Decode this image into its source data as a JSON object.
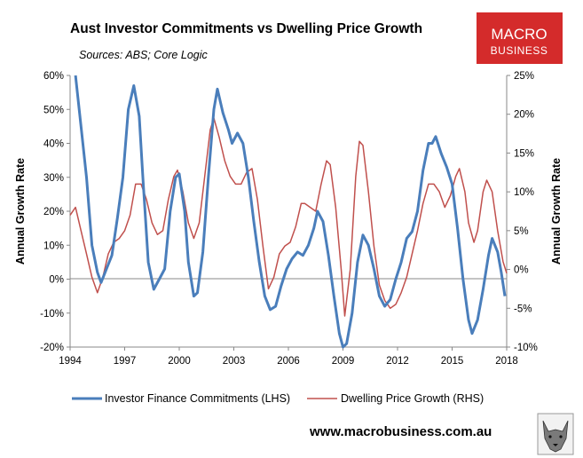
{
  "chart_data": {
    "type": "line",
    "title": "Aust Investor Commitments vs Dwelling Price Growth",
    "subtitle": "Sources: ABS; Core Logic",
    "ylabel_left": "Annual Growth Rate",
    "ylabel_right": "Annual Growth Rate",
    "xlim": [
      1994,
      2018
    ],
    "xticks": [
      "1994",
      "1997",
      "2000",
      "2003",
      "2006",
      "2009",
      "2012",
      "2015",
      "2018"
    ],
    "ylim_left": [
      -20,
      60
    ],
    "yticks_left": [
      "-20%",
      "-10%",
      "0%",
      "10%",
      "20%",
      "30%",
      "40%",
      "50%",
      "60%"
    ],
    "ylim_right": [
      -10,
      25
    ],
    "yticks_right": [
      "-10%",
      "-5%",
      "0%",
      "5%",
      "10%",
      "15%",
      "20%",
      "25%"
    ],
    "grid": false,
    "legend_position": "bottom",
    "series": [
      {
        "name": "Investor Finance Commitments (LHS)",
        "axis": "left",
        "color": "#4a7ebb",
        "points": [
          [
            1994.3,
            60
          ],
          [
            1994.6,
            45
          ],
          [
            1994.9,
            30
          ],
          [
            1995.2,
            10
          ],
          [
            1995.5,
            2
          ],
          [
            1995.7,
            -1
          ],
          [
            1996.0,
            3
          ],
          [
            1996.3,
            7
          ],
          [
            1996.6,
            18
          ],
          [
            1996.9,
            30
          ],
          [
            1997.2,
            50
          ],
          [
            1997.5,
            57
          ],
          [
            1997.8,
            48
          ],
          [
            1998.0,
            30
          ],
          [
            1998.3,
            5
          ],
          [
            1998.6,
            -3
          ],
          [
            1998.9,
            0
          ],
          [
            1999.2,
            3
          ],
          [
            1999.5,
            20
          ],
          [
            1999.8,
            30
          ],
          [
            2000.0,
            31
          ],
          [
            2000.3,
            20
          ],
          [
            2000.5,
            5
          ],
          [
            2000.8,
            -5
          ],
          [
            2001.0,
            -4
          ],
          [
            2001.3,
            8
          ],
          [
            2001.6,
            30
          ],
          [
            2001.9,
            50
          ],
          [
            2002.1,
            56
          ],
          [
            2002.4,
            49
          ],
          [
            2002.7,
            44
          ],
          [
            2002.9,
            40
          ],
          [
            2003.2,
            43
          ],
          [
            2003.5,
            40
          ],
          [
            2003.8,
            30
          ],
          [
            2004.1,
            17
          ],
          [
            2004.4,
            5
          ],
          [
            2004.7,
            -5
          ],
          [
            2005.0,
            -9
          ],
          [
            2005.3,
            -8
          ],
          [
            2005.6,
            -2
          ],
          [
            2005.9,
            3
          ],
          [
            2006.2,
            6
          ],
          [
            2006.5,
            8
          ],
          [
            2006.8,
            7
          ],
          [
            2007.1,
            10
          ],
          [
            2007.4,
            15
          ],
          [
            2007.6,
            20
          ],
          [
            2007.9,
            17
          ],
          [
            2008.2,
            7
          ],
          [
            2008.5,
            -5
          ],
          [
            2008.8,
            -16
          ],
          [
            2009.0,
            -20
          ],
          [
            2009.2,
            -19
          ],
          [
            2009.5,
            -10
          ],
          [
            2009.8,
            5
          ],
          [
            2010.1,
            13
          ],
          [
            2010.4,
            10
          ],
          [
            2010.7,
            3
          ],
          [
            2011.0,
            -5
          ],
          [
            2011.3,
            -8
          ],
          [
            2011.6,
            -6
          ],
          [
            2011.9,
            0
          ],
          [
            2012.2,
            5
          ],
          [
            2012.5,
            12
          ],
          [
            2012.8,
            14
          ],
          [
            2013.1,
            20
          ],
          [
            2013.4,
            32
          ],
          [
            2013.7,
            40
          ],
          [
            2013.9,
            40
          ],
          [
            2014.1,
            42
          ],
          [
            2014.4,
            37
          ],
          [
            2014.7,
            33
          ],
          [
            2015.0,
            28
          ],
          [
            2015.3,
            15
          ],
          [
            2015.6,
            0
          ],
          [
            2015.9,
            -12
          ],
          [
            2016.1,
            -16
          ],
          [
            2016.4,
            -12
          ],
          [
            2016.7,
            -3
          ],
          [
            2017.0,
            7
          ],
          [
            2017.2,
            12
          ],
          [
            2017.5,
            8
          ],
          [
            2017.7,
            2
          ],
          [
            2017.9,
            -5
          ]
        ]
      },
      {
        "name": "Dwelling Price Growth (RHS)",
        "axis": "right",
        "color": "#c0504d",
        "points": [
          [
            1994.0,
            7
          ],
          [
            1994.3,
            8
          ],
          [
            1994.6,
            5
          ],
          [
            1994.9,
            2
          ],
          [
            1995.2,
            -1
          ],
          [
            1995.5,
            -3
          ],
          [
            1995.8,
            -1
          ],
          [
            1996.1,
            2
          ],
          [
            1996.4,
            3.5
          ],
          [
            1996.7,
            4
          ],
          [
            1997.0,
            5
          ],
          [
            1997.3,
            7
          ],
          [
            1997.6,
            11
          ],
          [
            1997.9,
            11
          ],
          [
            1998.2,
            9
          ],
          [
            1998.5,
            6
          ],
          [
            1998.8,
            4.5
          ],
          [
            1999.1,
            5
          ],
          [
            1999.4,
            9
          ],
          [
            1999.7,
            12
          ],
          [
            1999.9,
            12.8
          ],
          [
            2000.2,
            10
          ],
          [
            2000.5,
            6
          ],
          [
            2000.8,
            4
          ],
          [
            2001.1,
            6
          ],
          [
            2001.4,
            12
          ],
          [
            2001.7,
            18
          ],
          [
            2001.9,
            19.5
          ],
          [
            2002.2,
            17
          ],
          [
            2002.5,
            14
          ],
          [
            2002.8,
            12
          ],
          [
            2003.1,
            11
          ],
          [
            2003.4,
            11
          ],
          [
            2003.7,
            12.5
          ],
          [
            2004.0,
            13
          ],
          [
            2004.3,
            9
          ],
          [
            2004.6,
            3
          ],
          [
            2004.9,
            -2.5
          ],
          [
            2005.2,
            -1
          ],
          [
            2005.5,
            2
          ],
          [
            2005.8,
            3
          ],
          [
            2006.1,
            3.5
          ],
          [
            2006.4,
            5.5
          ],
          [
            2006.7,
            8.5
          ],
          [
            2006.9,
            8.5
          ],
          [
            2007.2,
            8
          ],
          [
            2007.5,
            7.5
          ],
          [
            2007.8,
            11
          ],
          [
            2008.1,
            14
          ],
          [
            2008.3,
            13.5
          ],
          [
            2008.6,
            8
          ],
          [
            2008.9,
            0
          ],
          [
            2009.1,
            -6
          ],
          [
            2009.4,
            0
          ],
          [
            2009.7,
            12
          ],
          [
            2009.9,
            16.5
          ],
          [
            2010.1,
            16
          ],
          [
            2010.4,
            10
          ],
          [
            2010.7,
            3
          ],
          [
            2011.0,
            -2
          ],
          [
            2011.3,
            -4
          ],
          [
            2011.6,
            -5
          ],
          [
            2011.9,
            -4.5
          ],
          [
            2012.2,
            -3
          ],
          [
            2012.5,
            -1
          ],
          [
            2012.8,
            2
          ],
          [
            2013.1,
            5
          ],
          [
            2013.4,
            8.5
          ],
          [
            2013.7,
            11
          ],
          [
            2014.0,
            11
          ],
          [
            2014.3,
            10
          ],
          [
            2014.6,
            8
          ],
          [
            2014.9,
            9.5
          ],
          [
            2015.2,
            12
          ],
          [
            2015.4,
            13
          ],
          [
            2015.7,
            10
          ],
          [
            2015.9,
            6
          ],
          [
            2016.2,
            3.5
          ],
          [
            2016.4,
            5
          ],
          [
            2016.7,
            10
          ],
          [
            2016.9,
            11.5
          ],
          [
            2017.2,
            10
          ],
          [
            2017.5,
            5
          ],
          [
            2017.8,
            1
          ],
          [
            2018.0,
            -0.5
          ]
        ]
      }
    ]
  },
  "branding": {
    "logo_line1": "MACRO",
    "logo_line2": "BUSINESS",
    "logo_color": "#d42b2b",
    "website": "www.macrobusiness.com.au",
    "mascot_icon": "wolf-head-icon"
  }
}
